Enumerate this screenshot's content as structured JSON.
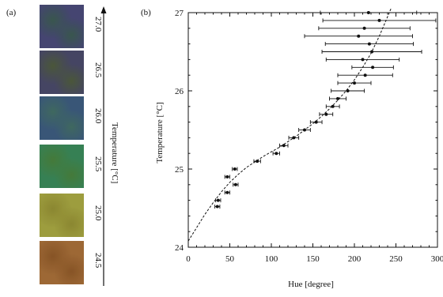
{
  "panel_a": {
    "label": "(a)",
    "axis_title": "Temperature [°C]",
    "swatches": [
      {
        "temperature": "27.0",
        "color": "#4a4a72",
        "color2": "#3f5a52"
      },
      {
        "temperature": "26.5",
        "color": "#4a4a66",
        "color2": "#4f5a40"
      },
      {
        "temperature": "26.0",
        "color": "#3f5a78",
        "color2": "#456a62"
      },
      {
        "temperature": "25.5",
        "color": "#3d8058",
        "color2": "#4a7a40"
      },
      {
        "temperature": "25.0",
        "color": "#9a9a44",
        "color2": "#8a8638"
      },
      {
        "temperature": "24.5",
        "color": "#9a6a3c",
        "color2": "#86582e"
      }
    ]
  },
  "chart_data": {
    "type": "scatter",
    "panel_label": "(b)",
    "xlabel": "Hue [degree]",
    "ylabel": "Temperature [°C]",
    "xlim": [
      0,
      300
    ],
    "ylim": [
      24,
      27
    ],
    "xticks": [
      0,
      50,
      100,
      150,
      200,
      250,
      300
    ],
    "yticks": [
      24,
      25,
      26,
      27
    ],
    "points": [
      {
        "x": 35,
        "y": 24.52,
        "xerr": 3
      },
      {
        "x": 36,
        "y": 24.6,
        "xerr": 3
      },
      {
        "x": 47,
        "y": 24.7,
        "xerr": 3
      },
      {
        "x": 57,
        "y": 24.8,
        "xerr": 3
      },
      {
        "x": 47,
        "y": 24.9,
        "xerr": 3
      },
      {
        "x": 56,
        "y": 25.0,
        "xerr": 3
      },
      {
        "x": 83,
        "y": 25.1,
        "xerr": 4
      },
      {
        "x": 106,
        "y": 25.2,
        "xerr": 4
      },
      {
        "x": 115,
        "y": 25.3,
        "xerr": 5
      },
      {
        "x": 127,
        "y": 25.4,
        "xerr": 6
      },
      {
        "x": 140,
        "y": 25.5,
        "xerr": 7
      },
      {
        "x": 154,
        "y": 25.6,
        "xerr": 7
      },
      {
        "x": 166,
        "y": 25.7,
        "xerr": 8
      },
      {
        "x": 174,
        "y": 25.8,
        "xerr": 8
      },
      {
        "x": 180,
        "y": 25.9,
        "xerr": 10
      },
      {
        "x": 192,
        "y": 26.0,
        "xerr": 20
      },
      {
        "x": 200,
        "y": 26.1,
        "xerr": 20
      },
      {
        "x": 213,
        "y": 26.2,
        "xerr": 33
      },
      {
        "x": 222,
        "y": 26.3,
        "xerr": 25
      },
      {
        "x": 210,
        "y": 26.4,
        "xerr": 44
      },
      {
        "x": 221,
        "y": 26.5,
        "xerr": 60
      },
      {
        "x": 218,
        "y": 26.6,
        "xerr": 53
      },
      {
        "x": 205,
        "y": 26.7,
        "xerr": 65
      },
      {
        "x": 212,
        "y": 26.8,
        "xerr": 55
      },
      {
        "x": 230,
        "y": 26.9,
        "xerr": 68
      },
      {
        "x": 217,
        "y": 27.0,
        "xerr": 58
      }
    ],
    "fit_curve": [
      [
        0,
        24.08
      ],
      [
        10,
        24.25
      ],
      [
        20,
        24.42
      ],
      [
        30,
        24.57
      ],
      [
        40,
        24.71
      ],
      [
        50,
        24.83
      ],
      [
        60,
        24.93
      ],
      [
        70,
        25.02
      ],
      [
        80,
        25.09
      ],
      [
        90,
        25.16
      ],
      [
        100,
        25.22
      ],
      [
        110,
        25.28
      ],
      [
        120,
        25.35
      ],
      [
        130,
        25.42
      ],
      [
        140,
        25.5
      ],
      [
        150,
        25.58
      ],
      [
        160,
        25.67
      ],
      [
        170,
        25.77
      ],
      [
        180,
        25.88
      ],
      [
        190,
        26.0
      ],
      [
        200,
        26.14
      ],
      [
        210,
        26.3
      ],
      [
        220,
        26.48
      ],
      [
        230,
        26.7
      ],
      [
        240,
        26.95
      ],
      [
        244,
        27.05
      ]
    ]
  }
}
